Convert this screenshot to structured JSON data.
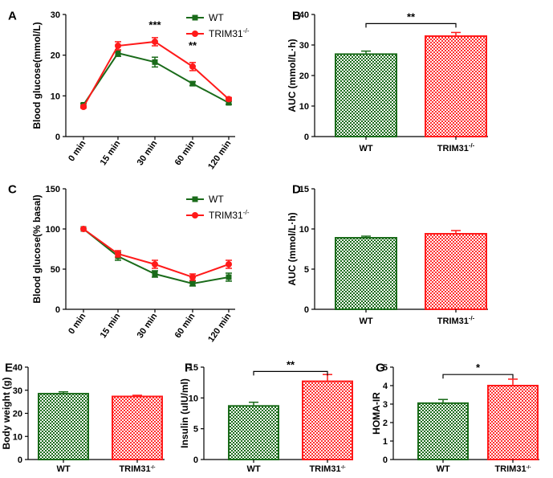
{
  "colors": {
    "wt": "#1a6b1a",
    "ko": "#ff1a1a",
    "axis": "#000000"
  },
  "chart_data": [
    {
      "id": "A",
      "type": "line",
      "letter": "A",
      "ylabel": "Blood glucose(mmol/L)",
      "ylim": [
        0,
        30
      ],
      "yticks": [
        "0",
        "10",
        "20",
        "30"
      ],
      "categories": [
        "0 min",
        "15 min",
        "30 min",
        "60 min",
        "120 min"
      ],
      "series": [
        {
          "name": "WT",
          "values": [
            7.8,
            20.5,
            18.3,
            13.0,
            8.3
          ],
          "err": [
            0.3,
            0.8,
            1.2,
            0.5,
            0.4
          ]
        },
        {
          "name": "TRIM31",
          "sup": "-/-",
          "values": [
            7.3,
            22.3,
            23.3,
            17.2,
            9.2
          ],
          "err": [
            0.3,
            1.0,
            1.0,
            1.0,
            0.4
          ]
        }
      ],
      "stars": [
        {
          "cat": 2,
          "text": "***",
          "y": 26.5
        },
        {
          "cat": 3,
          "text": "**",
          "y": 21.5
        }
      ]
    },
    {
      "id": "B",
      "type": "bar",
      "letter": "B",
      "ylabel": "AUC (mmol/L·h)",
      "ylim": [
        0,
        40
      ],
      "yticks": [
        "0",
        "10",
        "20",
        "30",
        "40"
      ],
      "categories": [
        {
          "name": "WT"
        },
        {
          "name": "TRIM31",
          "sup": "-/-"
        }
      ],
      "values": [
        27.0,
        32.9
      ],
      "err": [
        1.0,
        1.2
      ],
      "sig": {
        "text": "**",
        "y": 37.0
      }
    },
    {
      "id": "C",
      "type": "line",
      "letter": "C",
      "ylabel": "Blood glucose(% basal)",
      "ylim": [
        0,
        150
      ],
      "yticks": [
        "0",
        "50",
        "100",
        "150"
      ],
      "categories": [
        "0 min",
        "15 min",
        "30 min",
        "60 min",
        "120 min"
      ],
      "series": [
        {
          "name": "WT",
          "values": [
            100,
            66,
            44,
            32,
            40
          ],
          "err": [
            0,
            5,
            4,
            3,
            5
          ]
        },
        {
          "name": "TRIM31",
          "sup": "-/-",
          "values": [
            100,
            69,
            56,
            40,
            56
          ],
          "err": [
            0,
            4,
            5,
            4,
            5
          ]
        }
      ],
      "stars": []
    },
    {
      "id": "D",
      "type": "bar",
      "letter": "D",
      "ylabel": "AUC (mmol/L·h)",
      "ylim": [
        0,
        15
      ],
      "yticks": [
        "0",
        "5",
        "10",
        "15"
      ],
      "categories": [
        {
          "name": "WT"
        },
        {
          "name": "TRIM31",
          "sup": "-/-"
        }
      ],
      "values": [
        8.9,
        9.4
      ],
      "err": [
        0.2,
        0.4
      ],
      "sig": null
    },
    {
      "id": "E",
      "type": "bar",
      "letter": "E",
      "ylabel": "Body weight (g)",
      "ylim": [
        0,
        40
      ],
      "yticks": [
        "0",
        "10",
        "20",
        "30",
        "40"
      ],
      "categories": [
        {
          "name": "WT"
        },
        {
          "name": "TRIM31",
          "sup": "-/-"
        }
      ],
      "values": [
        28.5,
        27.3
      ],
      "err": [
        0.8,
        0.5
      ],
      "sig": null
    },
    {
      "id": "F",
      "type": "bar",
      "letter": "F",
      "ylabel": "Insulin (uIU/ml)",
      "ylim": [
        0,
        15
      ],
      "yticks": [
        "0",
        "5",
        "10",
        "15"
      ],
      "categories": [
        {
          "name": "WT"
        },
        {
          "name": "TRIM31",
          "sup": "-/-"
        }
      ],
      "values": [
        8.7,
        12.7
      ],
      "err": [
        0.6,
        1.1
      ],
      "sig": {
        "text": "**",
        "y": 14.3
      }
    },
    {
      "id": "G",
      "type": "bar",
      "letter": "G",
      "ylabel": "HOMA-IR",
      "ylim": [
        0,
        5
      ],
      "yticks": [
        "0",
        "1",
        "2",
        "3",
        "4",
        "5"
      ],
      "categories": [
        {
          "name": "WT"
        },
        {
          "name": "TRIM31",
          "sup": "-/-"
        }
      ],
      "values": [
        3.05,
        4.0
      ],
      "err": [
        0.2,
        0.35
      ],
      "sig": {
        "text": "*",
        "y": 4.6
      }
    }
  ]
}
